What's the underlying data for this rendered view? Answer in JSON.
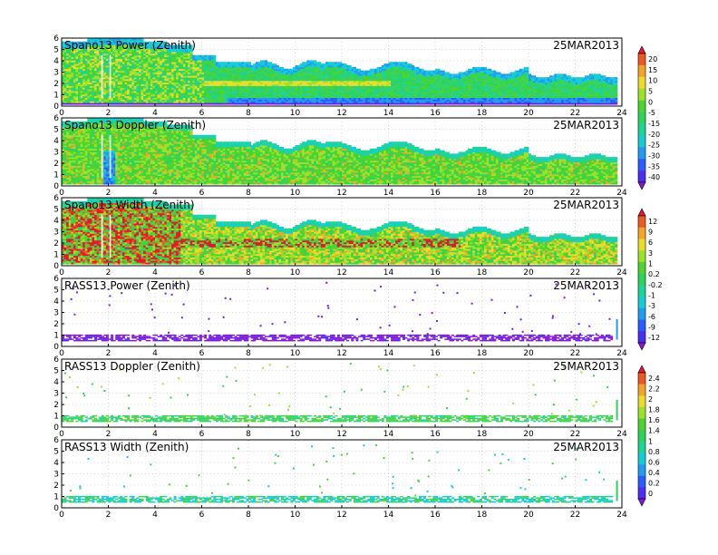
{
  "chart_data": {
    "type": "heatmap",
    "x_range": [
      0,
      24
    ],
    "y_range": [
      0,
      6
    ],
    "x_ticks": [
      "0",
      "2",
      "4",
      "6",
      "8",
      "10",
      "12",
      "14",
      "16",
      "18",
      "20",
      "22",
      "24"
    ],
    "y_ticks": [
      "0",
      "1",
      "2",
      "3",
      "4",
      "5",
      "6"
    ],
    "grid": true,
    "panels": [
      {
        "title": "Spano13 Power (Zenith)",
        "date": "25MAR2013",
        "kind": "spano",
        "variable": "power",
        "colorbar": 0
      },
      {
        "title": "Spano13 Doppler (Zenith)",
        "date": "25MAR2013",
        "kind": "spano",
        "variable": "doppler",
        "colorbar": 0
      },
      {
        "title": "Spano13 Width (Zenith)",
        "date": "25MAR2013",
        "kind": "spano",
        "variable": "width",
        "colorbar": 1
      },
      {
        "title": "RASS13 Power (Zenith)",
        "date": "25MAR2013",
        "kind": "rass",
        "variable": "power",
        "colorbar": 1
      },
      {
        "title": "RASS13 Doppler (Zenith)",
        "date": "25MAR2013",
        "kind": "rass",
        "variable": "doppler",
        "colorbar": 2
      },
      {
        "title": "RASS13 Width (Zenith)",
        "date": "25MAR2013",
        "kind": "rass",
        "variable": "width",
        "colorbar": 2
      }
    ],
    "colorbars": [
      {
        "labels": [
          "20",
          "15",
          "10",
          "5",
          "0",
          "-5",
          "-15",
          "-20",
          "-25",
          "-30",
          "-35",
          "-40"
        ]
      },
      {
        "labels": [
          "12",
          "9",
          "6",
          "3",
          "1",
          "0.2",
          "-0.2",
          "-1",
          "-3",
          "-6",
          "-9",
          "-12"
        ]
      },
      {
        "labels": [
          "2.4",
          "2.2",
          "2",
          "1.8",
          "1.6",
          "1.4",
          "1",
          "0.8",
          "0.6",
          "0.4",
          "0.2",
          "0"
        ]
      }
    ],
    "palette": [
      "#8a16d8",
      "#4c2ef2",
      "#2c5cff",
      "#229cf2",
      "#16cdd6",
      "#20d496",
      "#2ed25c",
      "#4cd430",
      "#9ce22a",
      "#eadc2e",
      "#f4a428",
      "#ec5a22",
      "#e4182e"
    ]
  }
}
